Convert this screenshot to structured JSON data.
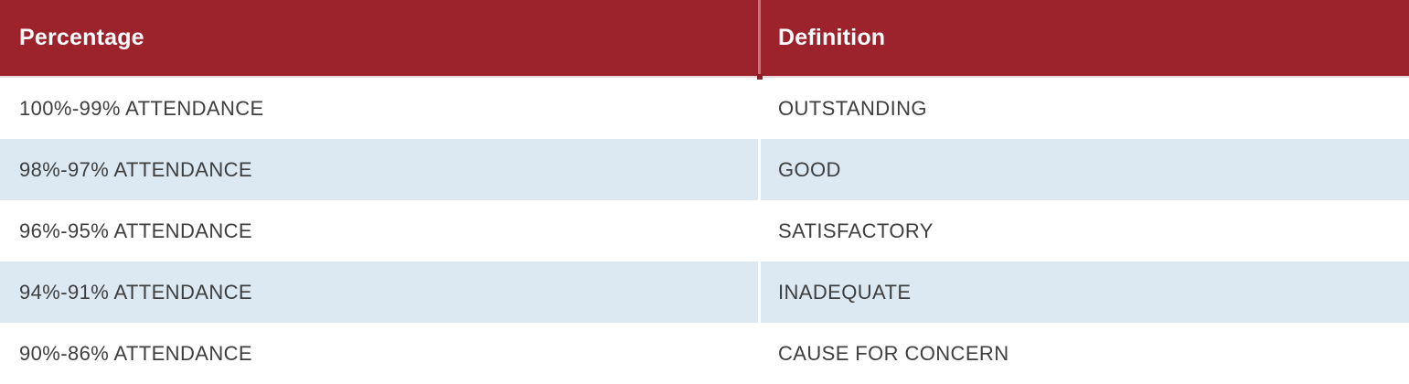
{
  "table": {
    "header": {
      "columns": [
        {
          "label": "Percentage"
        },
        {
          "label": "Definition"
        }
      ]
    },
    "rows": [
      {
        "percentage": "100%-99% ATTENDANCE",
        "definition": "OUTSTANDING"
      },
      {
        "percentage": "98%-97% ATTENDANCE",
        "definition": "GOOD"
      },
      {
        "percentage": "96%-95% ATTENDANCE",
        "definition": "SATISFACTORY"
      },
      {
        "percentage": "94%-91% ATTENDANCE",
        "definition": "INADEQUATE"
      },
      {
        "percentage": "90%-86% ATTENDANCE",
        "definition": "CAUSE FOR CONCERN"
      }
    ]
  },
  "colors": {
    "header_bg": "#9C232C",
    "header_text": "#FFFFFF",
    "header_divider": "#C0767D",
    "header_bottom_border": "#E9D8D9",
    "header_tick": "#8E1E26",
    "row_bg": "#FFFFFF",
    "row_alt_bg": "#DCE9F2",
    "body_text": "#3E3E3E"
  }
}
